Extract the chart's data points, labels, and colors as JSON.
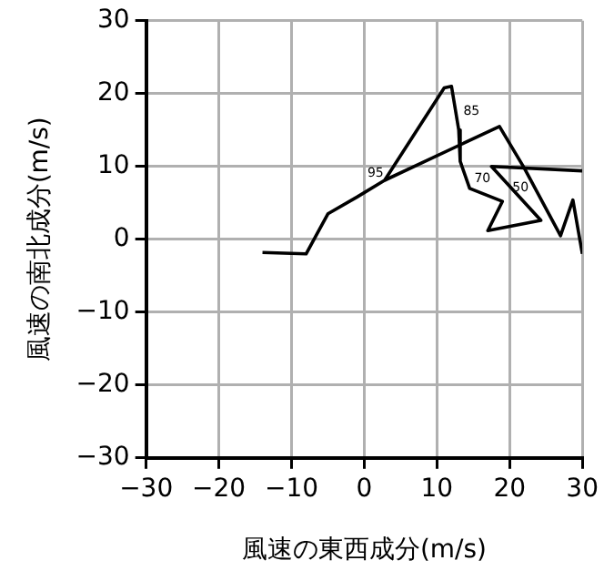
{
  "chart_data": {
    "type": "line",
    "xlabel": "風速の東西成分(m/s)",
    "ylabel": "風速の南北成分(m/s)",
    "series": [
      {
        "color": "#000000",
        "x": [
          -14,
          -8,
          -5,
          -1,
          2.8,
          11,
          12,
          13,
          13.2,
          14.5,
          19,
          17,
          24.3,
          17.5,
          30
        ],
        "values": [
          -1.8,
          -2,
          3.5,
          5.8,
          8.1,
          20.8,
          21,
          15,
          10.7,
          7,
          5.2,
          1.2,
          2.6,
          10,
          9.4
        ]
      },
      {
        "color": "#000000",
        "x": [
          2.8,
          18.6,
          22,
          27,
          28.7,
          30
        ],
        "values": [
          8.1,
          15.5,
          9.8,
          0.5,
          5.4,
          -2
        ]
      }
    ],
    "xlim": [
      -30,
      30
    ],
    "ylim": [
      -30,
      30
    ],
    "xticks": [
      {
        "value": -30,
        "label": "−30"
      },
      {
        "value": -20,
        "label": "−20"
      },
      {
        "value": -10,
        "label": "−10"
      },
      0,
      10,
      20,
      30
    ],
    "yticks": [
      {
        "value": -30,
        "label": "−30"
      },
      {
        "value": -20,
        "label": "−20"
      },
      {
        "value": -10,
        "label": "−10"
      },
      0,
      10,
      20,
      30
    ],
    "grid": true,
    "legend": false,
    "marker": "none",
    "line_style": "solid",
    "annotations": [
      {
        "text": "95",
        "x": 2.8,
        "y": 8.1
      },
      {
        "text": "85",
        "x": 13,
        "y": 15
      },
      {
        "text": "70",
        "x": 14.5,
        "y": 7
      },
      {
        "text": "50",
        "x": 22,
        "y": 9.8
      }
    ]
  }
}
